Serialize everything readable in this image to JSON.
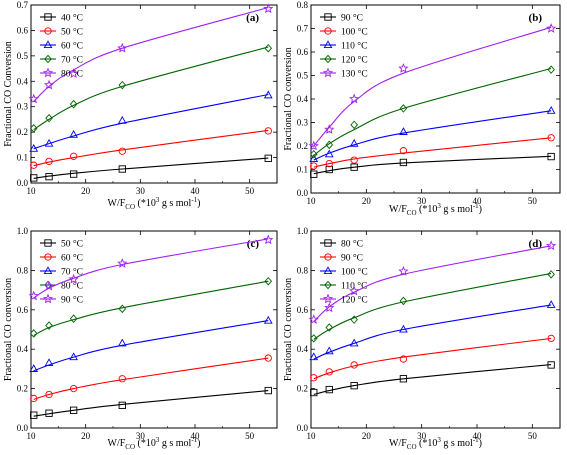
{
  "chart_data": [
    {
      "type": "line",
      "panel_label": "(a)",
      "xlabel": "W/F",
      "xlabel_sub": "CO",
      "xlabel_tail": " (*10",
      "xlabel_sup": "3",
      "xlabel_end": " g s mol",
      "xlabel_sup2": "-1",
      "xlabel_close": ")",
      "ylabel": "Fractional CO Conversion",
      "xlim": [
        10,
        55
      ],
      "ylim": [
        0.0,
        0.7
      ],
      "xticks": [
        10,
        20,
        30,
        40,
        50
      ],
      "yticks": [
        0.0,
        0.1,
        0.2,
        0.3,
        0.4,
        0.5,
        0.6,
        0.7
      ],
      "ytick_labels": [
        "0.0",
        "0.1",
        "0.2",
        "0.3",
        "0.4",
        "0.5",
        "0.6",
        "0.7"
      ],
      "legend_position": "top-left",
      "x": [
        10.5,
        13.3,
        17.8,
        26.7,
        53.4
      ],
      "series": [
        {
          "name": "40 °C",
          "color": "#000000",
          "marker": "square",
          "values": [
            0.02,
            0.025,
            0.035,
            0.055,
            0.097
          ],
          "fit": [
            0.018,
            0.027,
            0.038,
            0.055,
            0.098
          ]
        },
        {
          "name": "50 °C",
          "color": "#ff0000",
          "marker": "circle",
          "values": [
            0.07,
            0.085,
            0.105,
            0.125,
            0.205
          ],
          "fit": [
            0.068,
            0.082,
            0.1,
            0.13,
            0.207
          ]
        },
        {
          "name": "60 °C",
          "color": "#0000ff",
          "marker": "triangle",
          "values": [
            0.135,
            0.155,
            0.19,
            0.245,
            0.345
          ],
          "fit": [
            0.135,
            0.155,
            0.185,
            0.235,
            0.348
          ]
        },
        {
          "name": "70 °C",
          "color": "#006400",
          "marker": "diamond",
          "values": [
            0.215,
            0.255,
            0.31,
            0.385,
            0.53
          ],
          "fit": [
            0.21,
            0.25,
            0.305,
            0.38,
            0.535
          ]
        },
        {
          "name": "80 °C",
          "color": "#a020f0",
          "marker": "star",
          "values": [
            0.33,
            0.385,
            0.43,
            0.53,
            0.685
          ],
          "fit": [
            0.32,
            0.38,
            0.445,
            0.53,
            0.69
          ]
        }
      ]
    },
    {
      "type": "line",
      "panel_label": "(b)",
      "xlabel": "W/F",
      "xlabel_sub": "CO",
      "xlabel_tail": " (*10",
      "xlabel_sup": "3",
      "xlabel_end": " g s mol",
      "xlabel_sup2": "-1",
      "xlabel_close": ")",
      "ylabel": "Fractional CO conversion",
      "xlim": [
        10,
        55
      ],
      "ylim": [
        0.0,
        0.8
      ],
      "xticks": [
        10,
        20,
        30,
        40,
        50
      ],
      "yticks": [
        0.0,
        0.1,
        0.2,
        0.3,
        0.4,
        0.5,
        0.6,
        0.7,
        0.8
      ],
      "ytick_labels": [
        "0.0",
        "0.1",
        "0.2",
        "0.3",
        "0.4",
        "0.5",
        "0.6",
        "0.7",
        "0.8"
      ],
      "legend_position": "top-left",
      "x": [
        10.5,
        13.3,
        17.8,
        26.7,
        53.4
      ],
      "series": [
        {
          "name": "90 °C",
          "color": "#000000",
          "marker": "square",
          "values": [
            0.08,
            0.1,
            0.11,
            0.13,
            0.155
          ],
          "fit": [
            0.082,
            0.095,
            0.11,
            0.128,
            0.156
          ]
        },
        {
          "name": "100 °C",
          "color": "#ff0000",
          "marker": "circle",
          "values": [
            0.115,
            0.125,
            0.14,
            0.18,
            0.235
          ],
          "fit": [
            0.11,
            0.125,
            0.145,
            0.17,
            0.235
          ]
        },
        {
          "name": "110 °C",
          "color": "#0000ff",
          "marker": "triangle",
          "values": [
            0.145,
            0.165,
            0.21,
            0.26,
            0.35
          ],
          "fit": [
            0.14,
            0.17,
            0.205,
            0.255,
            0.35
          ]
        },
        {
          "name": "120 °C",
          "color": "#006400",
          "marker": "diamond",
          "values": [
            0.165,
            0.205,
            0.29,
            0.36,
            0.525
          ],
          "fit": [
            0.16,
            0.21,
            0.27,
            0.36,
            0.53
          ]
        },
        {
          "name": "130 °C",
          "color": "#a020f0",
          "marker": "star",
          "values": [
            0.2,
            0.27,
            0.4,
            0.53,
            0.7
          ],
          "fit": [
            0.2,
            0.28,
            0.39,
            0.51,
            0.705
          ]
        }
      ]
    },
    {
      "type": "line",
      "panel_label": "(c)",
      "xlabel": "W/F",
      "xlabel_sub": "CO",
      "xlabel_tail": " (*10",
      "xlabel_sup": "3",
      "xlabel_end": " g s mol",
      "xlabel_sup2": "-1",
      "xlabel_close": ")",
      "ylabel": "Fractional CO conversion",
      "xlim": [
        10,
        55
      ],
      "ylim": [
        0.0,
        1.0
      ],
      "xticks": [
        10,
        20,
        30,
        40,
        50
      ],
      "yticks": [
        0.0,
        0.2,
        0.4,
        0.6,
        0.8,
        1.0
      ],
      "ytick_labels": [
        "0.0",
        "0.2",
        "0.4",
        "0.6",
        "0.8",
        "1.0"
      ],
      "legend_position": "top-left",
      "x": [
        10.5,
        13.3,
        17.8,
        26.7,
        53.4
      ],
      "series": [
        {
          "name": "50 °C",
          "color": "#000000",
          "marker": "square",
          "values": [
            0.065,
            0.075,
            0.09,
            0.115,
            0.19
          ],
          "fit": [
            0.06,
            0.072,
            0.09,
            0.12,
            0.19
          ]
        },
        {
          "name": "60 °C",
          "color": "#ff0000",
          "marker": "circle",
          "values": [
            0.15,
            0.17,
            0.2,
            0.25,
            0.355
          ],
          "fit": [
            0.145,
            0.17,
            0.2,
            0.245,
            0.355
          ]
        },
        {
          "name": "70 °C",
          "color": "#0000ff",
          "marker": "triangle",
          "values": [
            0.3,
            0.33,
            0.36,
            0.43,
            0.545
          ],
          "fit": [
            0.29,
            0.32,
            0.36,
            0.42,
            0.545
          ]
        },
        {
          "name": "80 °C",
          "color": "#006400",
          "marker": "diamond",
          "values": [
            0.48,
            0.52,
            0.555,
            0.605,
            0.745
          ],
          "fit": [
            0.47,
            0.51,
            0.55,
            0.61,
            0.745
          ]
        },
        {
          "name": "90 °C",
          "color": "#a020f0",
          "marker": "star",
          "values": [
            0.67,
            0.72,
            0.755,
            0.835,
            0.955
          ],
          "fit": [
            0.66,
            0.71,
            0.76,
            0.83,
            0.96
          ]
        }
      ]
    },
    {
      "type": "line",
      "panel_label": "(d)",
      "xlabel": "W/F",
      "xlabel_sub": "CO",
      "xlabel_tail": " (*10",
      "xlabel_sup": "3",
      "xlabel_end": " g s mol",
      "xlabel_sup2": "-1",
      "xlabel_close": ")",
      "ylabel": "Fractional CO conversion",
      "xlim": [
        10,
        55
      ],
      "ylim": [
        0.0,
        1.0
      ],
      "xticks": [
        10,
        20,
        30,
        40,
        50
      ],
      "yticks": [
        0.0,
        0.2,
        0.4,
        0.6,
        0.8,
        1.0
      ],
      "ytick_labels": [
        "0.0",
        "0.2",
        "0.4",
        "0.6",
        "0.8",
        "1.0"
      ],
      "legend_position": "top-left",
      "x": [
        10.5,
        13.3,
        17.8,
        26.7,
        53.4
      ],
      "series": [
        {
          "name": "80 °C",
          "color": "#000000",
          "marker": "square",
          "values": [
            0.18,
            0.195,
            0.215,
            0.25,
            0.32
          ],
          "fit": [
            0.17,
            0.19,
            0.215,
            0.25,
            0.322
          ]
        },
        {
          "name": "90 °C",
          "color": "#ff0000",
          "marker": "circle",
          "values": [
            0.255,
            0.285,
            0.32,
            0.35,
            0.455
          ],
          "fit": [
            0.25,
            0.28,
            0.315,
            0.36,
            0.455
          ]
        },
        {
          "name": "100 °C",
          "color": "#0000ff",
          "marker": "triangle",
          "values": [
            0.36,
            0.39,
            0.43,
            0.5,
            0.625
          ],
          "fit": [
            0.35,
            0.385,
            0.43,
            0.5,
            0.625
          ]
        },
        {
          "name": "110 °C",
          "color": "#006400",
          "marker": "diamond",
          "values": [
            0.455,
            0.51,
            0.55,
            0.645,
            0.78
          ],
          "fit": [
            0.45,
            0.5,
            0.56,
            0.64,
            0.785
          ]
        },
        {
          "name": "120 °C",
          "color": "#a020f0",
          "marker": "star",
          "values": [
            0.55,
            0.61,
            0.695,
            0.795,
            0.925
          ],
          "fit": [
            0.54,
            0.615,
            0.69,
            0.78,
            0.925
          ]
        }
      ]
    }
  ]
}
